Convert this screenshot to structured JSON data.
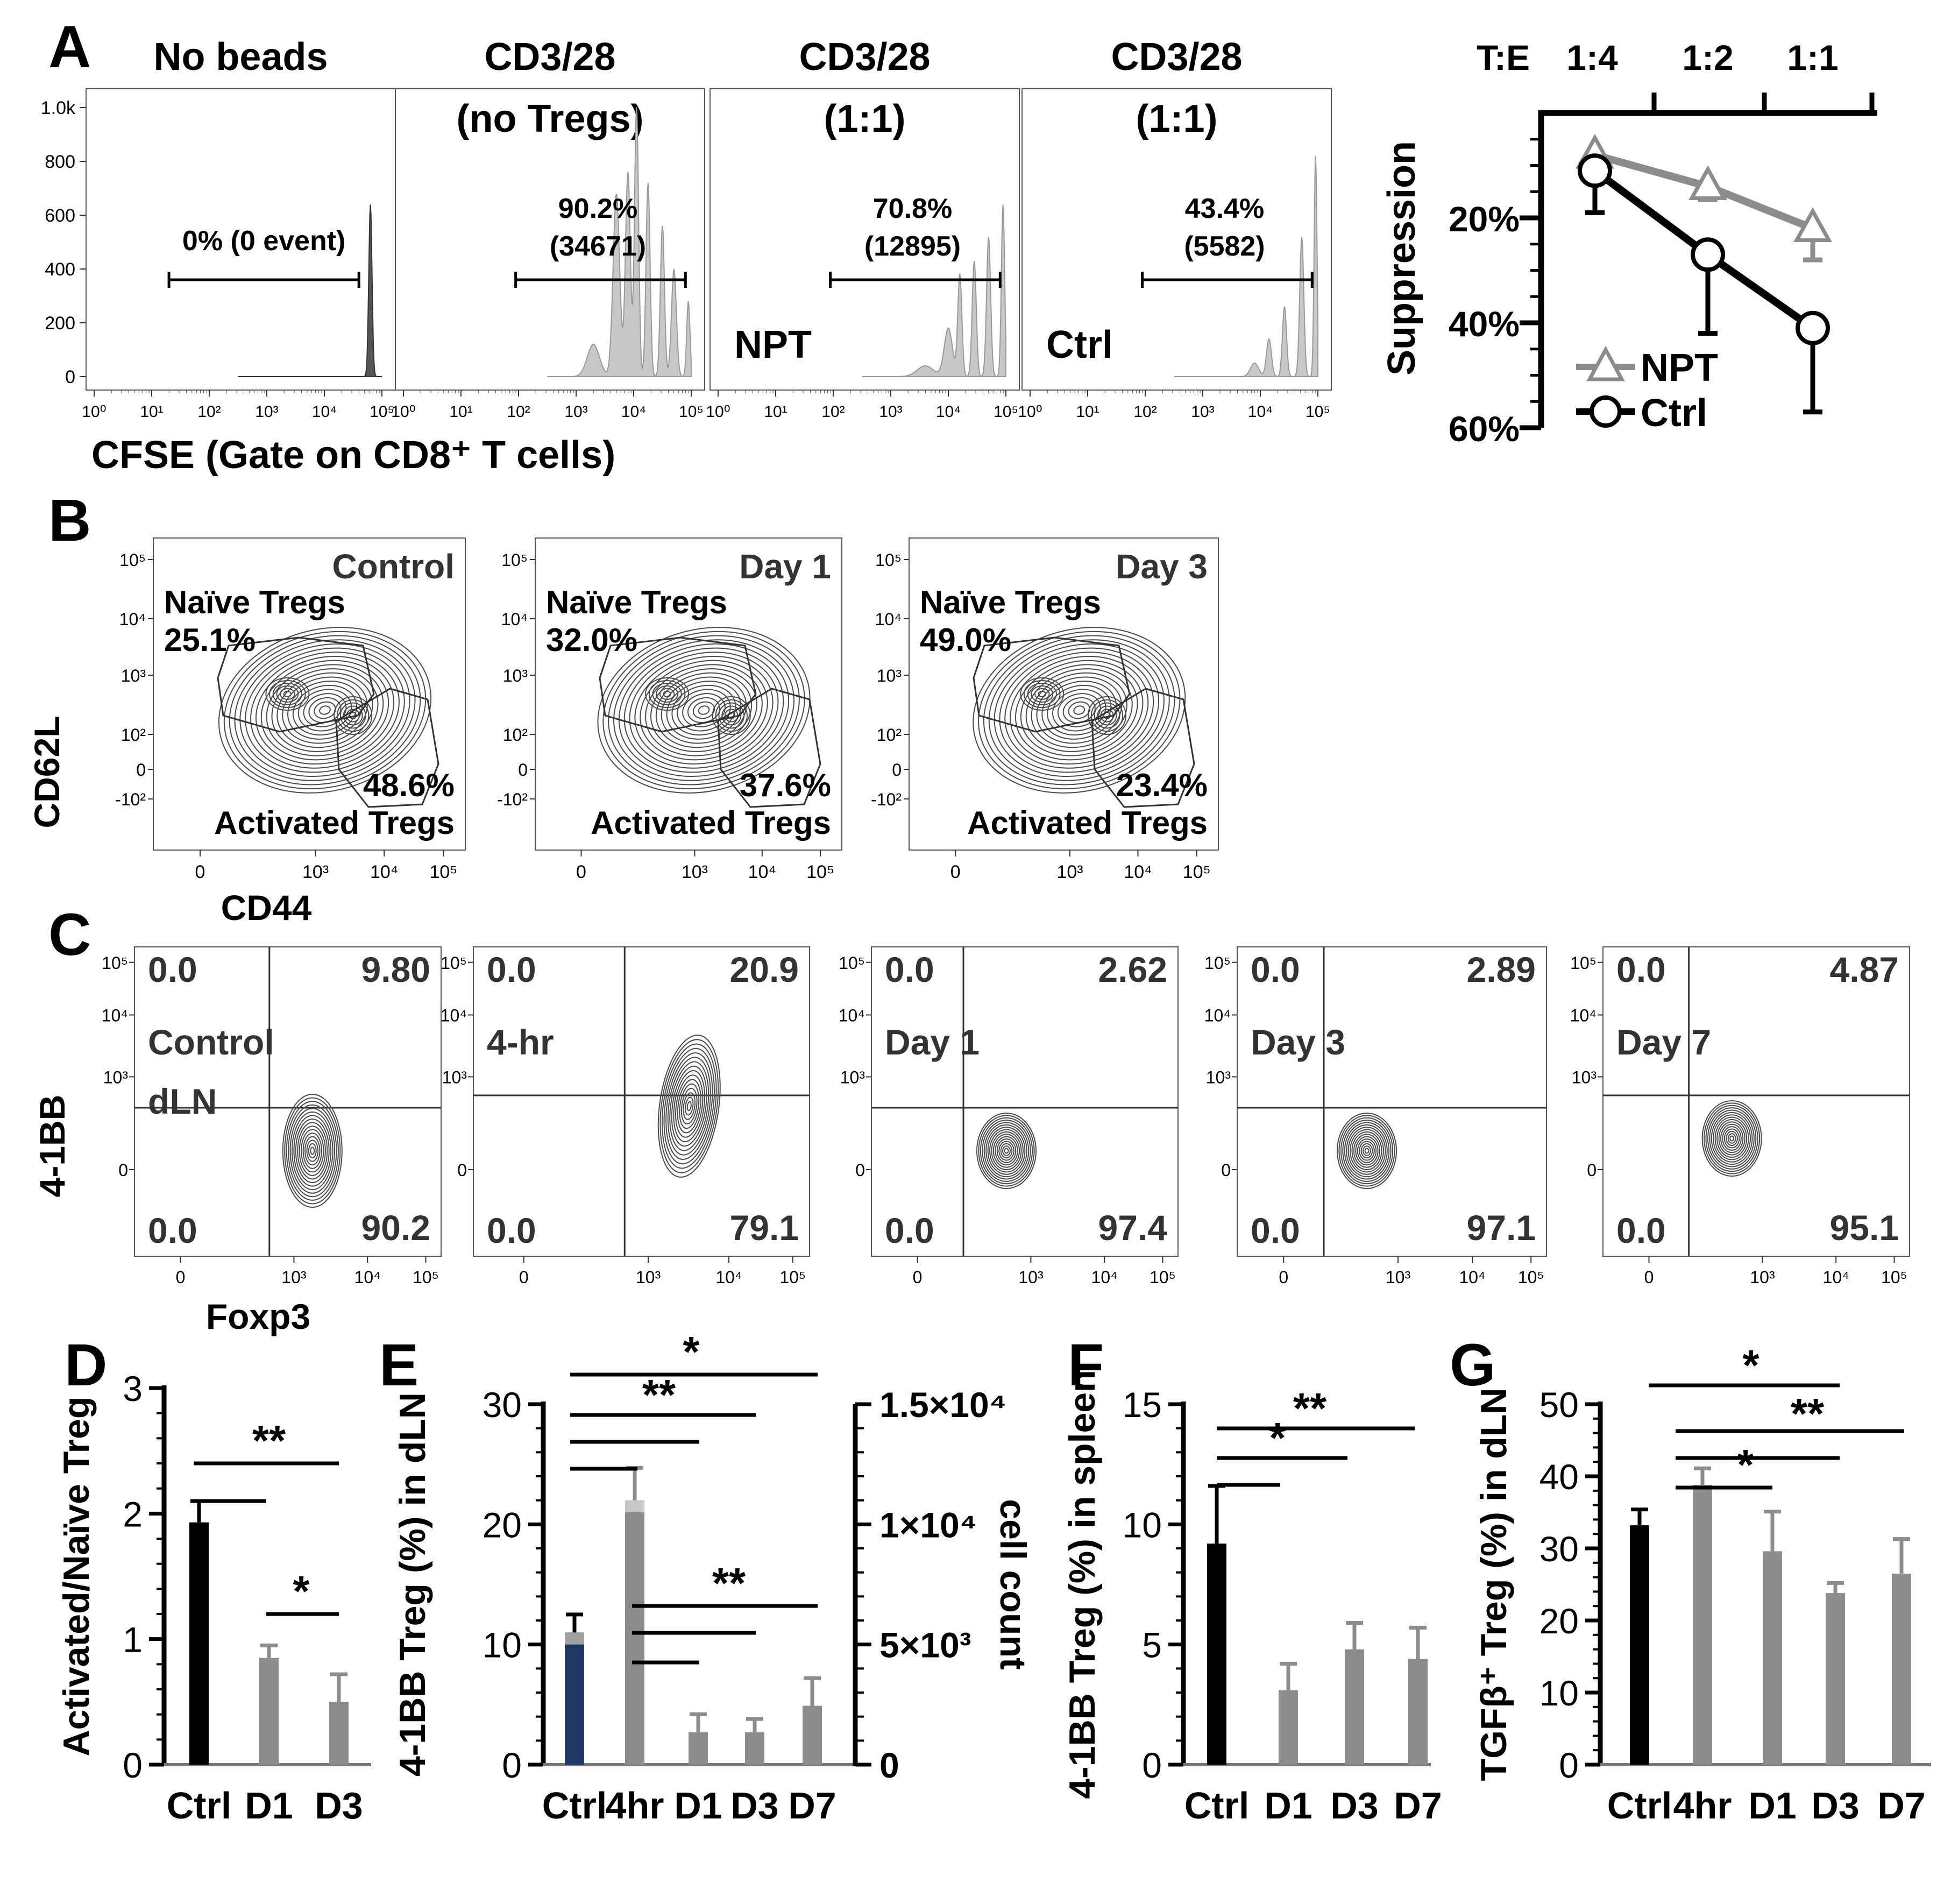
{
  "figure": {
    "panel_labels": [
      "A",
      "B",
      "C",
      "D",
      "E",
      "F",
      "G"
    ]
  },
  "colors": {
    "black": "#000000",
    "bar_gray": "#8c8c8c",
    "line_gray": "#8c8c8c",
    "navy": "#203864",
    "hist_fill": "#c8c8c8",
    "contour": "#4a4a4a"
  },
  "panel_a": {
    "x_axis_label": "CFSE (Gate on CD8⁺ T cells)",
    "y_ticks": [
      "1.0k",
      "800",
      "600",
      "400",
      "200",
      "0"
    ],
    "x_ticks": [
      "10⁰",
      "10¹",
      "10²",
      "10³",
      "10⁴",
      "10⁵"
    ],
    "plots": [
      {
        "title_lines": [
          "No beads"
        ],
        "gate_label": "0% (0 event)",
        "gate_count": "",
        "tag": ""
      },
      {
        "title_lines": [
          "CD3/28",
          "(no Tregs)"
        ],
        "gate_label": "90.2%",
        "gate_count": "(34671)",
        "tag": ""
      },
      {
        "title_lines": [
          "CD3/28",
          "(1:1)"
        ],
        "gate_label": "70.8%",
        "gate_count": "(12895)",
        "tag": "NPT"
      },
      {
        "title_lines": [
          "CD3/28",
          "(1:1)"
        ],
        "gate_label": "43.4%",
        "gate_count": "(5582)",
        "tag": "Ctrl"
      }
    ],
    "suppression_chart": {
      "type": "line",
      "x_title": "T:E",
      "categories": [
        "1:4",
        "1:2",
        "1:1"
      ],
      "ylabel": "Suppression",
      "y_ticks": [
        "20%",
        "40%",
        "60%"
      ],
      "ylim": [
        0,
        60
      ],
      "y_inverted": true,
      "series": [
        {
          "name": "NPT",
          "marker": "triangle",
          "values": [
            8,
            14,
            22
          ],
          "errors": [
            1.5,
            2.5,
            6
          ]
        },
        {
          "name": "Ctrl",
          "marker": "circle",
          "values": [
            11,
            27,
            41
          ],
          "errors": [
            8,
            15,
            16
          ]
        }
      ]
    }
  },
  "panel_b": {
    "y_axis_label": "CD62L",
    "x_axis_label": "CD44",
    "y_ticks": [
      "10⁵",
      "10⁴",
      "10³",
      "10²",
      "0",
      "-10²"
    ],
    "x_ticks": [
      "0",
      "10³",
      "10⁴",
      "10⁵"
    ],
    "naive_label": "Naïve Tregs",
    "activated_label": "Activated Tregs",
    "plots": [
      {
        "title": "Control",
        "naive_pct": "25.1%",
        "activated_pct": "48.6%"
      },
      {
        "title": "Day 1",
        "naive_pct": "32.0%",
        "activated_pct": "37.6%"
      },
      {
        "title": "Day 3",
        "naive_pct": "49.0%",
        "activated_pct": "23.4%"
      }
    ]
  },
  "panel_c": {
    "y_axis_label": "4-1BB",
    "x_axis_label": "Foxp3",
    "y_ticks": [
      "10⁵",
      "10⁴",
      "10³",
      "0"
    ],
    "x_ticks": [
      "0",
      "10³",
      "10⁴",
      "10⁵"
    ],
    "plots": [
      {
        "title_lines": [
          "Control",
          "dLN"
        ],
        "ul": "0.0",
        "ur": "9.80",
        "ll": "0.0",
        "lr": "90.2"
      },
      {
        "title_lines": [
          "4-hr"
        ],
        "ul": "0.0",
        "ur": "20.9",
        "ll": "0.0",
        "lr": "79.1"
      },
      {
        "title_lines": [
          "Day 1"
        ],
        "ul": "0.0",
        "ur": "2.62",
        "ll": "0.0",
        "lr": "97.4"
      },
      {
        "title_lines": [
          "Day 3"
        ],
        "ul": "0.0",
        "ur": "2.89",
        "ll": "0.0",
        "lr": "97.1"
      },
      {
        "title_lines": [
          "Day 7"
        ],
        "ul": "0.0",
        "ur": "4.87",
        "ll": "0.0",
        "lr": "95.1"
      }
    ]
  },
  "chart_data": [
    {
      "panel": "D",
      "type": "bar",
      "categories": [
        "Ctrl",
        "D1",
        "D3"
      ],
      "values": [
        1.93,
        0.85,
        0.5
      ],
      "errors": [
        0.17,
        0.1,
        0.22
      ],
      "ylabel": "Activated/Naïve Treg",
      "ylim": [
        0,
        3
      ],
      "y_ticks": [
        "0",
        "1",
        "2",
        "3"
      ],
      "significance": [
        "**",
        "*"
      ]
    },
    {
      "panel": "E",
      "type": "bar",
      "categories": [
        "Ctrl",
        "4hr",
        "D1",
        "D3",
        "D7"
      ],
      "values": [
        11,
        22,
        2.7,
        2.7,
        4.9
      ],
      "errors": [
        1.5,
        2.7,
        1.5,
        1.1,
        2.3
      ],
      "cell_count": [
        5000,
        10500
      ],
      "ylabel": "4-1BB Treg (%) in dLN",
      "ylim": [
        0,
        30
      ],
      "y_ticks": [
        "0",
        "10",
        "20",
        "30"
      ],
      "y2label": "cell count",
      "y2lim": [
        0,
        15000
      ],
      "y2_ticks": [
        "0",
        "5×10³",
        "1×10⁴",
        "1.5×10⁴"
      ],
      "significance": [
        "*",
        "**",
        "**"
      ]
    },
    {
      "panel": "F",
      "type": "bar",
      "categories": [
        "Ctrl",
        "D1",
        "D3",
        "D7"
      ],
      "values": [
        9.2,
        3.1,
        4.8,
        4.4
      ],
      "errors": [
        2.4,
        1.1,
        1.1,
        1.3
      ],
      "ylabel": "4-1BB Treg (%) in spleen",
      "ylim": [
        0,
        15
      ],
      "y_ticks": [
        "0",
        "5",
        "10",
        "15"
      ],
      "significance": [
        "**",
        "*"
      ]
    },
    {
      "panel": "G",
      "type": "bar",
      "categories": [
        "Ctrl",
        "4hr",
        "D1",
        "D3",
        "D7"
      ],
      "values": [
        33.2,
        38.8,
        29.6,
        23.8,
        26.5
      ],
      "errors": [
        2.2,
        2.3,
        5.5,
        1.4,
        4.8
      ],
      "ylabel": "TGFβ⁺ Treg (%) in dLN",
      "ylim": [
        0,
        50
      ],
      "y_ticks": [
        "0",
        "10",
        "20",
        "30",
        "40",
        "50"
      ],
      "significance": [
        "*",
        "**",
        "*"
      ]
    }
  ]
}
